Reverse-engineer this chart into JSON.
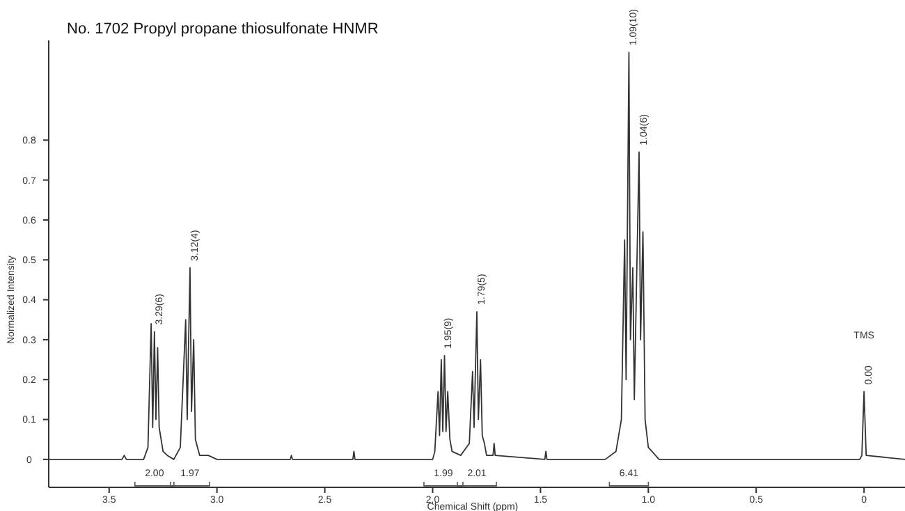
{
  "chart_data": {
    "type": "line",
    "title": "No. 1702 Propyl propane thiosulfonate HNMR",
    "xlabel": "Chemical Shift (ppm)",
    "ylabel": "Normalized Intensity",
    "xlim": [
      3.78,
      -0.19
    ],
    "xticks": [
      3.5,
      {
        "value": 3,
        "label": "3.0"
      },
      2.5,
      {
        "value": 2,
        "label": "2.0"
      },
      1.5,
      {
        "value": 1,
        "label": "1.0"
      },
      0.5,
      0
    ],
    "ylim": [
      -0.07,
      1.05
    ],
    "yticks": [
      0,
      0.1,
      0.2,
      0.3,
      0.4,
      0.5,
      0.6,
      0.7,
      0.8
    ],
    "grid": false,
    "marker": "none",
    "line_style": "solid",
    "series": [
      {
        "color": "#333333",
        "x": [
          3.78,
          3.44,
          3.43,
          3.42,
          3.34,
          3.32,
          3.305,
          3.298,
          3.29,
          3.283,
          3.275,
          3.268,
          3.25,
          3.23,
          3.2,
          3.17,
          3.145,
          3.138,
          3.125,
          3.118,
          3.108,
          3.1,
          3.08,
          3.04,
          3.0,
          2.66,
          2.655,
          2.65,
          2.37,
          2.365,
          2.36,
          2.0,
          1.99,
          1.975,
          1.968,
          1.96,
          1.953,
          1.945,
          1.938,
          1.93,
          1.92,
          1.91,
          1.87,
          1.83,
          1.815,
          1.808,
          1.795,
          1.788,
          1.778,
          1.77,
          1.76,
          1.75,
          1.72,
          1.715,
          1.71,
          1.48,
          1.475,
          1.47,
          1.2,
          1.15,
          1.125,
          1.11,
          1.103,
          1.09,
          1.083,
          1.072,
          1.065,
          1.043,
          1.036,
          1.025,
          1.015,
          1.0,
          0.95,
          0.02,
          0.01,
          0,
          -0.01,
          -0.19
        ],
        "values": [
          0,
          0,
          0.01,
          0,
          0,
          0.03,
          0.34,
          0.08,
          0.32,
          0.1,
          0.28,
          0.08,
          0.02,
          0.01,
          0,
          0.03,
          0.35,
          0.1,
          0.48,
          0.12,
          0.3,
          0.05,
          0.01,
          0.01,
          0,
          0,
          0.01,
          0,
          0,
          0.02,
          0,
          0,
          0.02,
          0.17,
          0.06,
          0.25,
          0.07,
          0.26,
          0.07,
          0.17,
          0.05,
          0.02,
          0.01,
          0.04,
          0.22,
          0.08,
          0.37,
          0.1,
          0.25,
          0.06,
          0.04,
          0.01,
          0.01,
          0.04,
          0.01,
          0,
          0.02,
          0,
          0,
          0.02,
          0.1,
          0.55,
          0.2,
          1.02,
          0.3,
          0.48,
          0.15,
          0.77,
          0.3,
          0.57,
          0.1,
          0.03,
          0,
          0,
          0.01,
          0.17,
          0.01,
          0
        ]
      }
    ],
    "annotations": [
      "TMS",
      {
        "text": "3.29(6)",
        "x": 3.29,
        "y": 0.32
      },
      "2.00",
      {
        "text": "3.12(4)",
        "x": 3.125,
        "y": 0.48
      },
      "1.97",
      {
        "text": "1.95(9)",
        "x": 1.95,
        "y": 0.26
      },
      "1.99",
      {
        "text": "1.79(5)",
        "x": 1.795,
        "y": 0.37
      },
      "2.01",
      {
        "text": "1.09(10)",
        "x": 1.09,
        "y": 1.02
      },
      "6.41",
      {
        "text": "1.04(6)",
        "x": 1.043,
        "y": 0.77
      },
      {
        "text": "0.00",
        "x": 0,
        "y": 0.17
      }
    ]
  }
}
